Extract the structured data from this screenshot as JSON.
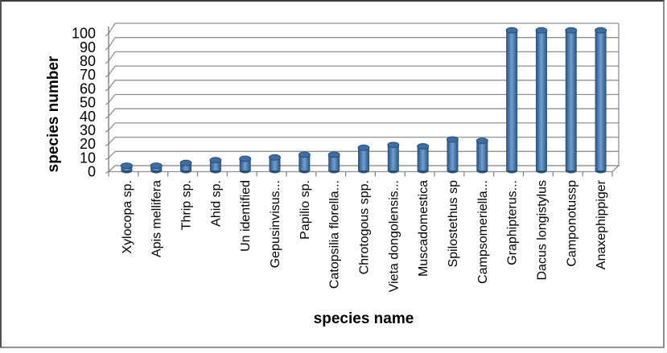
{
  "figure": {
    "background": "#ffffff",
    "frame_border_dark": "#3d3d3d",
    "frame_border_light": "#8f8f8f"
  },
  "chart_data": {
    "type": "bar",
    "style": "3d-cylinder",
    "title": "",
    "xlabel": "species name",
    "ylabel": "species number",
    "categories": [
      "Xylocopa sp.",
      "Apis mellifera",
      "Thrip sp.",
      "Ahid sp.",
      "Un identified",
      "Gepusinvisus...",
      "Papilio sp.",
      "Catopsilia florella...",
      "Chrotogous spp.",
      "Vieta dongolensis...",
      "Muscadomestica",
      "Spilostethus sp",
      "Campsomeriella...",
      "Graphipterus...",
      "Dacus longistylus",
      "Camponotussp",
      "Anaxephippiger"
    ],
    "values": [
      2,
      2,
      4,
      6,
      7,
      8,
      10,
      10,
      15,
      17,
      16,
      21,
      20,
      100,
      100,
      100,
      100
    ],
    "ylim": [
      0,
      100
    ],
    "yticks": [
      0,
      10,
      20,
      30,
      40,
      50,
      60,
      70,
      80,
      90,
      100
    ],
    "grid": true,
    "legend": "none",
    "bar_color": "#4f81bd",
    "bar_edge": "#2c5074",
    "bar_highlight": "#719fd4",
    "bar_cap_color": "#3d6da3",
    "gridline_color": "#909090",
    "axis_color": "#7f7f7f",
    "text_color": "#000000"
  }
}
